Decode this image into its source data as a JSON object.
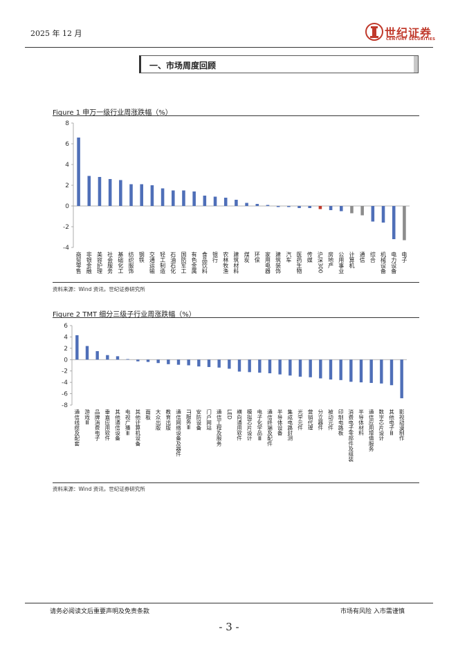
{
  "header": {
    "date": "2025 年 12 月",
    "logo_cn": "世纪证券",
    "logo_en": "CENTURY SECURITIES",
    "logo_icon": "tower-emblem-icon",
    "brand_color": "#c0392b"
  },
  "section": {
    "title": "一、市场周度回顾"
  },
  "figures": [
    {
      "title": "Figure 1 申万一级行业周涨跌幅（%）",
      "source": "资料来源：Wind 资讯，世纪证券研究所"
    },
    {
      "title": "Figure 2 TMT 细分三级子行业周涨跌幅（%）",
      "source": "资料来源：Wind 资讯，世纪证券研究所"
    }
  ],
  "chart_data": [
    {
      "type": "bar",
      "ylim": [
        -4,
        8
      ],
      "yticks": [
        8,
        6,
        4,
        2,
        0,
        -2,
        -4
      ],
      "colors": {
        "default": "#4f6fb8",
        "highlight_red": "#c0392b",
        "highlight_gray": "#8c8c8c"
      },
      "categories": [
        "商贸零售",
        "非银金融",
        "美容护理",
        "社会服务",
        "基础化工",
        "纺织服饰",
        "钢铁",
        "交通运输",
        "轻工制造",
        "石油石化",
        "国防军工",
        "有色金属",
        "食品饮料",
        "银行",
        "农林牧渔",
        "建筑材料",
        "煤炭",
        "环保",
        "家用电器",
        "建筑装饰",
        "汽车",
        "医药生物",
        "传媒",
        "沪深300",
        "房地产",
        "公用事业",
        "计算机",
        "通信",
        "综合",
        "机械设备",
        "电力设备",
        "电子"
      ],
      "values": [
        6.6,
        2.9,
        2.8,
        2.6,
        2.5,
        2.1,
        2.1,
        2.0,
        1.7,
        1.5,
        1.5,
        1.4,
        1.0,
        0.9,
        0.8,
        0.6,
        0.3,
        0.2,
        0.1,
        -0.1,
        -0.1,
        -0.2,
        -0.2,
        -0.3,
        -0.4,
        -0.5,
        -0.7,
        -0.9,
        -1.5,
        -1.6,
        -3.2,
        -3.3
      ],
      "bar_colors": [
        "default",
        "default",
        "default",
        "default",
        "default",
        "default",
        "default",
        "default",
        "default",
        "default",
        "default",
        "default",
        "default",
        "default",
        "default",
        "default",
        "default",
        "default",
        "default",
        "default",
        "default",
        "default",
        "default",
        "highlight_red",
        "default",
        "default",
        "highlight_gray",
        "highlight_gray",
        "default",
        "default",
        "default",
        "highlight_gray"
      ]
    },
    {
      "type": "bar",
      "ylim": [
        -8,
        6
      ],
      "yticks": [
        6,
        4,
        2,
        0,
        -2,
        -4,
        -6,
        -8
      ],
      "colors": {
        "default": "#4f6fb8"
      },
      "categories": [
        "通信线缆及配套",
        "游戏Ⅲ",
        "品牌消费电子",
        "垂直应用软件",
        "其他通信设备",
        "电视广播Ⅲ",
        "其他计算机设备",
        "面板",
        "大众出版",
        "教育出版",
        "通信网络设备及器件",
        "IT服务Ⅲ",
        "安防设备",
        "门户网站",
        "通信工程及服务",
        "LED",
        "横向通用软件",
        "模拟芯片设计",
        "电子化学品Ⅲ",
        "通信终端及配件",
        "半导体设备",
        "集成电路封测",
        "光学元件",
        "营销代理",
        "分立器件",
        "被动元件",
        "印制电路板",
        "消费电子零部件及组装",
        "半导体材料",
        "通信应用增值服务",
        "数字芯片设计",
        "其他电子Ⅲ",
        "影视动漫制作"
      ],
      "values": [
        4.3,
        2.4,
        1.5,
        0.8,
        0.6,
        0.1,
        -0.3,
        -0.4,
        -0.6,
        -0.8,
        -0.9,
        -1.0,
        -1.2,
        -1.3,
        -1.4,
        -1.6,
        -2.1,
        -2.2,
        -2.3,
        -2.4,
        -2.6,
        -2.8,
        -3.0,
        -3.1,
        -3.3,
        -3.5,
        -3.6,
        -3.9,
        -4.0,
        -4.1,
        -4.2,
        -4.5,
        -6.8
      ]
    }
  ],
  "footer": {
    "left": "请务必阅读文后重要声明及免责条款",
    "right": "市场有风险  入市需谨慎",
    "page_number": "- 3 -"
  }
}
